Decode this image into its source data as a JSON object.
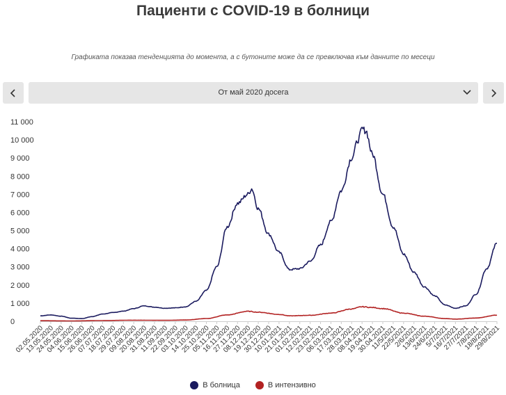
{
  "title": "Пациенти с COVID-19 в болници",
  "subtitle": "Графиката показва тенденцията до момента, а с бутоните може да се превключва към данните по месеци",
  "period_select": {
    "selected": "От май 2020 досега"
  },
  "icons": {
    "prev": "chevron-left-icon",
    "next": "chevron-right-icon",
    "dropdown": "chevron-down-icon"
  },
  "chart_data": {
    "type": "line",
    "ylim": [
      0,
      11000
    ],
    "yticks": [
      0,
      1000,
      2000,
      3000,
      4000,
      5000,
      6000,
      7000,
      8000,
      9000,
      10000,
      11000
    ],
    "ytick_labels": [
      "0",
      "1 000",
      "2 000",
      "3 000",
      "4 000",
      "5 000",
      "6 000",
      "7 000",
      "8 000",
      "9 000",
      "10 000",
      "11 000"
    ],
    "x_start": "2020-05-02",
    "x_end": "2021-08-29",
    "xtick_labels": [
      "02.05.2020",
      "13.05.2020",
      "24.05.2020",
      "04.06.2020",
      "15.06.2020",
      "26.06.2020",
      "07.07.2020",
      "18.07.2020",
      "29.07.2020",
      "09.08.2020",
      "20.08.2020",
      "31.08.2020",
      "11.09.2020",
      "22.09.2020",
      "03.10.2020",
      "14.10.2020",
      "25.10.2020",
      "05.11.2020",
      "16.11.2020",
      "27.11.2020",
      "08.12.2020",
      "19.12.2020",
      "30.12.2020",
      "10.01.2021",
      "21.01.2021",
      "01.02.2021",
      "12.02.2021",
      "23.02.2021",
      "06.03.2021",
      "17.03.2021",
      "28.03.2021",
      "08.04.2021",
      "19.04.2021",
      "30.04.2021",
      "11/5/2021",
      "22/5/2021",
      "2/6/2021",
      "13/6/2021",
      "24/6/2021",
      "5/7/2021",
      "16/7/2021",
      "27/7/2021",
      "7/8/2021",
      "18/8/2021",
      "29/8/2021"
    ],
    "grid": false,
    "legend_position": "bottom",
    "series": [
      {
        "name": "В болница",
        "color": "#1a1a5e",
        "points": [
          [
            "2020-05-02",
            300
          ],
          [
            "2020-05-13",
            350
          ],
          [
            "2020-05-24",
            280
          ],
          [
            "2020-06-04",
            170
          ],
          [
            "2020-06-15",
            150
          ],
          [
            "2020-06-26",
            260
          ],
          [
            "2020-07-07",
            400
          ],
          [
            "2020-07-18",
            480
          ],
          [
            "2020-07-29",
            560
          ],
          [
            "2020-08-09",
            700
          ],
          [
            "2020-08-20",
            850
          ],
          [
            "2020-08-31",
            780
          ],
          [
            "2020-09-11",
            720
          ],
          [
            "2020-09-22",
            740
          ],
          [
            "2020-10-03",
            800
          ],
          [
            "2020-10-14",
            1100
          ],
          [
            "2020-10-25",
            1700
          ],
          [
            "2020-11-05",
            3000
          ],
          [
            "2020-11-16",
            5200
          ],
          [
            "2020-11-27",
            6500
          ],
          [
            "2020-12-08",
            7000
          ],
          [
            "2020-12-12",
            7300
          ],
          [
            "2020-12-19",
            6200
          ],
          [
            "2020-12-30",
            4800
          ],
          [
            "2021-01-10",
            3800
          ],
          [
            "2021-01-21",
            2850
          ],
          [
            "2021-02-01",
            2900
          ],
          [
            "2021-02-12",
            3300
          ],
          [
            "2021-02-23",
            4200
          ],
          [
            "2021-03-06",
            5500
          ],
          [
            "2021-03-17",
            7200
          ],
          [
            "2021-03-28",
            9000
          ],
          [
            "2021-04-04",
            10000
          ],
          [
            "2021-04-08",
            10600
          ],
          [
            "2021-04-12",
            10500
          ],
          [
            "2021-04-19",
            9200
          ],
          [
            "2021-04-30",
            7000
          ],
          [
            "2021-05-11",
            5200
          ],
          [
            "2021-05-22",
            3700
          ],
          [
            "2021-06-02",
            2700
          ],
          [
            "2021-06-13",
            1900
          ],
          [
            "2021-06-24",
            1400
          ],
          [
            "2021-07-05",
            900
          ],
          [
            "2021-07-16",
            720
          ],
          [
            "2021-07-27",
            850
          ],
          [
            "2021-08-07",
            1500
          ],
          [
            "2021-08-18",
            2900
          ],
          [
            "2021-08-29",
            4300
          ]
        ]
      },
      {
        "name": "В интензивно",
        "color": "#b22222",
        "points": [
          [
            "2020-05-02",
            30
          ],
          [
            "2020-06-04",
            20
          ],
          [
            "2020-07-07",
            40
          ],
          [
            "2020-08-09",
            60
          ],
          [
            "2020-09-11",
            55
          ],
          [
            "2020-10-03",
            70
          ],
          [
            "2020-10-25",
            150
          ],
          [
            "2020-11-16",
            350
          ],
          [
            "2020-12-08",
            550
          ],
          [
            "2020-12-19",
            500
          ],
          [
            "2021-01-10",
            380
          ],
          [
            "2021-01-21",
            300
          ],
          [
            "2021-02-12",
            330
          ],
          [
            "2021-03-06",
            450
          ],
          [
            "2021-03-28",
            680
          ],
          [
            "2021-04-08",
            800
          ],
          [
            "2021-04-19",
            760
          ],
          [
            "2021-04-30",
            700
          ],
          [
            "2021-05-22",
            450
          ],
          [
            "2021-06-13",
            280
          ],
          [
            "2021-07-05",
            150
          ],
          [
            "2021-07-16",
            120
          ],
          [
            "2021-08-07",
            180
          ],
          [
            "2021-08-29",
            340
          ]
        ]
      }
    ]
  }
}
